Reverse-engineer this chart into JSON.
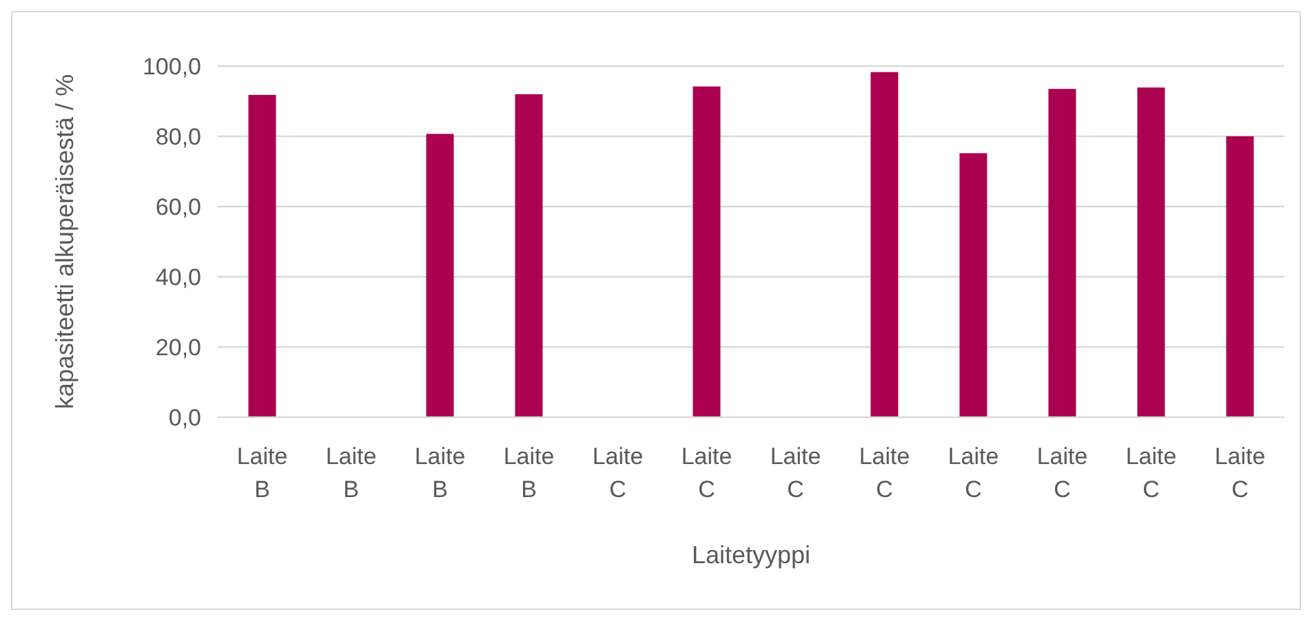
{
  "chart_data": {
    "type": "bar",
    "xlabel": "Laitetyyppi",
    "ylabel": "kapasiteetti alkuperäisestä / %",
    "categories": [
      "Laite B",
      "Laite B",
      "Laite B",
      "Laite B",
      "Laite C",
      "Laite C",
      "Laite C",
      "Laite C",
      "Laite C",
      "Laite C",
      "Laite C",
      "Laite C"
    ],
    "values": [
      91.8,
      null,
      80.7,
      92.0,
      null,
      94.2,
      null,
      98.3,
      75.2,
      93.5,
      93.9,
      80.0
    ],
    "color": "#ac0050",
    "ylim": [
      0,
      100
    ],
    "yticks": [
      {
        "value": 0,
        "label": "0,0"
      },
      {
        "value": 20,
        "label": "20,0"
      },
      {
        "value": 40,
        "label": "40,0"
      },
      {
        "value": 60,
        "label": "60,0"
      },
      {
        "value": 80,
        "label": "80,0"
      },
      {
        "value": 100,
        "label": "100,0"
      }
    ],
    "grid": "y"
  }
}
